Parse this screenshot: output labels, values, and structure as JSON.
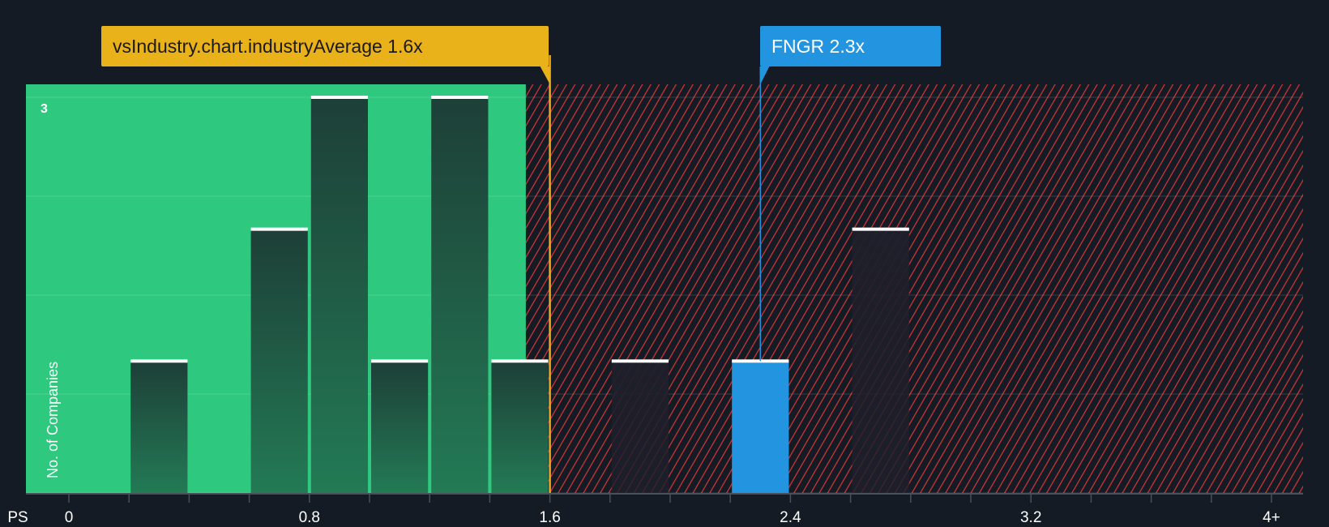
{
  "chart_data": {
    "type": "bar",
    "title": "",
    "xlabel": "PS",
    "ylabel": "No. of Companies",
    "x_ticks": [
      "0",
      "0.8",
      "1.6",
      "2.4",
      "3.2",
      "4+"
    ],
    "x_tick_values": [
      0,
      0.8,
      1.6,
      2.4,
      3.2,
      4.0
    ],
    "y_ticks": [
      "3"
    ],
    "xlim": [
      0,
      4.0
    ],
    "ylim": [
      0,
      3
    ],
    "bin_width": 0.2,
    "bins": [
      {
        "start": 0.2,
        "count": 1
      },
      {
        "start": 0.6,
        "count": 2
      },
      {
        "start": 0.8,
        "count": 3
      },
      {
        "start": 1.0,
        "count": 1
      },
      {
        "start": 1.2,
        "count": 3
      },
      {
        "start": 1.4,
        "count": 1
      },
      {
        "start": 1.8,
        "count": 1
      },
      {
        "start": 2.2,
        "count": 1,
        "highlight": true
      },
      {
        "start": 2.6,
        "count": 2
      }
    ],
    "industry_average": {
      "label": "vsIndustry.chart.industryAverage 1.6x",
      "value": 1.6
    },
    "company": {
      "label": "FNGR 2.3x",
      "value": 2.3
    },
    "fair_region_end": 1.52,
    "colors": {
      "good": "#2ec97f",
      "bad": "#d93636",
      "average": "#e9b11a",
      "company": "#2394e0",
      "background": "#151b24"
    }
  }
}
